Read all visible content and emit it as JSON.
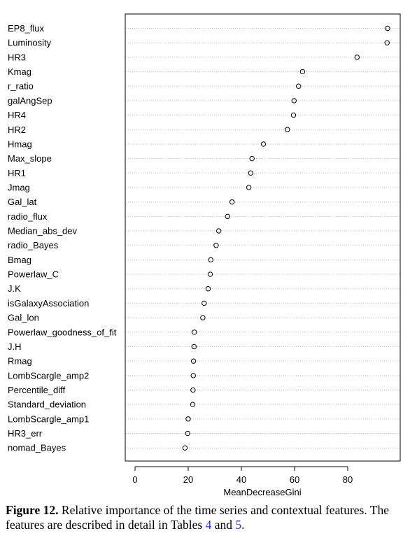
{
  "chart_data": {
    "type": "scatter",
    "style": "dotchart",
    "xlabel": "MeanDecreaseGini",
    "xlim": [
      -4,
      100
    ],
    "xticks": [
      0,
      20,
      40,
      60,
      80
    ],
    "grid": true,
    "categories": [
      "EP8_flux",
      "Luminosity",
      "HR3",
      "Kmag",
      "r_ratio",
      "galAngSep",
      "HR4",
      "HR2",
      "Hmag",
      "Max_slope",
      "HR1",
      "Jmag",
      "Gal_lat",
      "radio_flux",
      "Median_abs_dev",
      "radio_Bayes",
      "Bmag",
      "Powerlaw_C",
      "J.K",
      "isGalaxyAssociation",
      "Gal_lon",
      "Powerlaw_goodness_of_fit",
      "J.H",
      "Rmag",
      "LombScargle_amp2",
      "Percentile_diff",
      "Standard_deviation",
      "LombScargle_amp1",
      "HR3_err",
      "nomad_Bayes"
    ],
    "values": [
      95.0,
      94.8,
      83.5,
      63.0,
      61.5,
      59.8,
      59.6,
      57.3,
      48.3,
      44.0,
      43.5,
      42.8,
      36.5,
      34.8,
      31.5,
      30.5,
      28.5,
      28.3,
      27.5,
      26.0,
      25.5,
      22.3,
      22.2,
      22.0,
      21.9,
      21.8,
      21.7,
      20.0,
      19.8,
      18.8
    ]
  },
  "caption": {
    "label": "Figure 12.",
    "text_before": " Relative importance of the time series and contextual features. The features are described in detail in Tables ",
    "ref1": "4",
    "text_mid": " and ",
    "ref2": "5",
    "text_end": "."
  }
}
